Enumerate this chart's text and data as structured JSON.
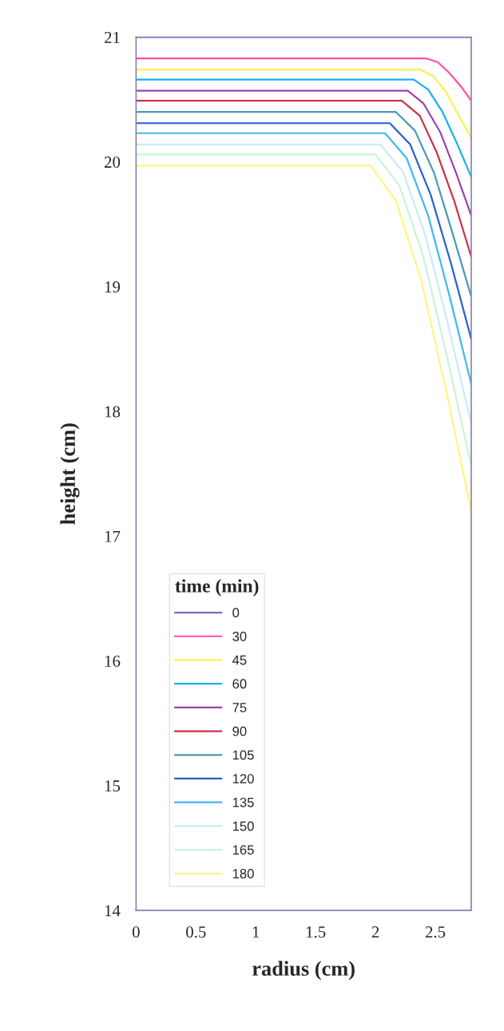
{
  "chart_data": {
    "type": "line",
    "xlabel": "radius (cm)",
    "ylabel": "height (cm)",
    "legend_title": "time (min)",
    "legend": "bottom left",
    "grid": false,
    "marker": "none",
    "line_style": "solid",
    "xlim": [
      0,
      2.8
    ],
    "xticks": [
      0,
      0.5,
      1,
      1.5,
      2,
      2.5
    ],
    "ylim": [
      14,
      21
    ],
    "yticks": [
      14,
      15,
      16,
      17,
      18,
      19,
      20,
      21
    ],
    "series": [
      {
        "name": "0",
        "color": "#7b68c8",
        "x": [
          0,
          2.8
        ],
        "values": [
          21,
          21
        ]
      },
      {
        "name": "30",
        "color": "#ff4fa8",
        "x": [
          0,
          2.42,
          2.52,
          2.61,
          2.71,
          2.8
        ],
        "values": [
          20.83,
          20.83,
          20.8,
          20.72,
          20.61,
          20.49
        ]
      },
      {
        "name": "45",
        "color": "#fff04a",
        "x": [
          0,
          2.37,
          2.48,
          2.59,
          2.69,
          2.8
        ],
        "values": [
          20.74,
          20.74,
          20.69,
          20.56,
          20.38,
          20.19
        ]
      },
      {
        "name": "60",
        "color": "#1ab0f0",
        "x": [
          0,
          2.32,
          2.44,
          2.56,
          2.68,
          2.8
        ],
        "values": [
          20.66,
          20.66,
          20.58,
          20.4,
          20.15,
          19.88
        ]
      },
      {
        "name": "75",
        "color": "#a040b0",
        "x": [
          0,
          2.27,
          2.4,
          2.54,
          2.67,
          2.8
        ],
        "values": [
          20.57,
          20.57,
          20.47,
          20.24,
          19.92,
          19.57
        ]
      },
      {
        "name": "90",
        "color": "#d0304a",
        "x": [
          0,
          2.22,
          2.37,
          2.51,
          2.66,
          2.8
        ],
        "values": [
          20.49,
          20.49,
          20.37,
          20.08,
          19.68,
          19.24
        ]
      },
      {
        "name": "105",
        "color": "#4a9ab8",
        "x": [
          0,
          2.17,
          2.33,
          2.49,
          2.64,
          2.8
        ],
        "values": [
          20.4,
          20.4,
          20.25,
          19.91,
          19.44,
          18.92
        ]
      },
      {
        "name": "120",
        "color": "#2a5ed0",
        "x": [
          0,
          2.12,
          2.29,
          2.46,
          2.63,
          2.8
        ],
        "values": [
          20.31,
          20.31,
          20.14,
          19.74,
          19.19,
          18.58
        ]
      },
      {
        "name": "135",
        "color": "#40b8f8",
        "x": [
          0,
          2.08,
          2.26,
          2.44,
          2.62,
          2.8
        ],
        "values": [
          20.23,
          20.23,
          20.03,
          19.57,
          18.92,
          18.22
        ]
      },
      {
        "name": "150",
        "color": "#c8ecfa",
        "x": [
          0,
          2.04,
          2.23,
          2.42,
          2.61,
          2.8
        ],
        "values": [
          20.14,
          20.14,
          19.92,
          19.4,
          18.68,
          17.9
        ]
      },
      {
        "name": "165",
        "color": "#c8f5d8",
        "x": [
          0,
          2.0,
          2.2,
          2.4,
          2.6,
          2.8
        ],
        "values": [
          20.06,
          20.06,
          19.81,
          19.24,
          18.43,
          17.56
        ]
      },
      {
        "name": "180",
        "color": "#fff580",
        "x": [
          0,
          1.96,
          2.17,
          2.38,
          2.59,
          2.8
        ],
        "values": [
          19.97,
          19.97,
          19.69,
          19.06,
          18.17,
          17.2
        ]
      }
    ]
  }
}
